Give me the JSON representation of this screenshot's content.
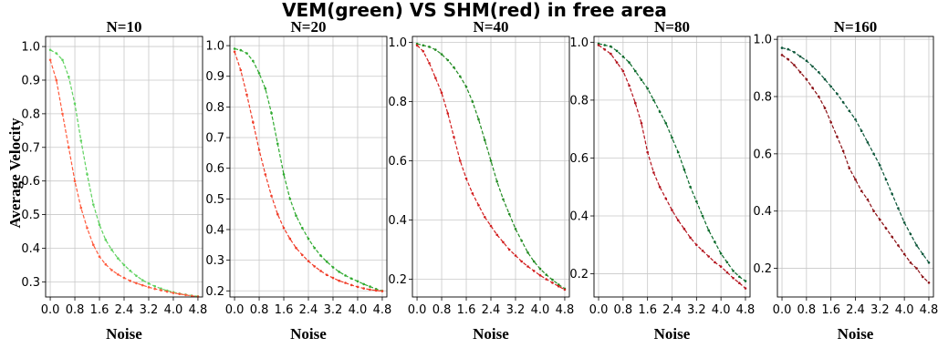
{
  "title": "VEM(green) VS SHM(red) in free area",
  "ylabel": "Average Velocity",
  "xlabel": "Noise",
  "colors": {
    "VEM": [
      "#5fd25f",
      "#2faa2f",
      "#228b22",
      "#0a6a2a",
      "#0a5538"
    ],
    "SHM": [
      "#ff5a3c",
      "#f03c28",
      "#d21e1e",
      "#b4141e",
      "#8a0f14"
    ]
  },
  "chart_data": [
    {
      "type": "line",
      "title": "N=10",
      "xlabel": "Noise",
      "ylabel": "Average Velocity",
      "xlim": [
        -0.15,
        4.95
      ],
      "ylim": [
        0.255,
        1.03
      ],
      "x_ticks": [
        "0.0",
        "0.8",
        "1.6",
        "2.4",
        "3.2",
        "4.0",
        "4.8"
      ],
      "y_ticks": [
        "0.3",
        "0.4",
        "0.5",
        "0.6",
        "0.7",
        "0.8",
        "0.9",
        "1.0"
      ],
      "grid": true,
      "x": [
        0.0,
        0.2,
        0.4,
        0.6,
        0.8,
        1.0,
        1.2,
        1.4,
        1.6,
        1.8,
        2.0,
        2.2,
        2.4,
        2.6,
        2.8,
        3.0,
        3.2,
        3.4,
        3.6,
        3.8,
        4.0,
        4.2,
        4.4,
        4.6,
        4.8
      ],
      "series": [
        {
          "values": [
            0.99,
            0.98,
            0.96,
            0.91,
            0.83,
            0.72,
            0.62,
            0.53,
            0.47,
            0.425,
            0.395,
            0.37,
            0.35,
            0.333,
            0.318,
            0.305,
            0.295,
            0.287,
            0.28,
            0.274,
            0.269,
            0.265,
            0.262,
            0.259,
            0.257
          ]
        },
        {
          "values": [
            0.96,
            0.9,
            0.8,
            0.7,
            0.6,
            0.52,
            0.46,
            0.41,
            0.375,
            0.352,
            0.335,
            0.322,
            0.312,
            0.303,
            0.296,
            0.29,
            0.284,
            0.279,
            0.275,
            0.271,
            0.267,
            0.264,
            0.261,
            0.258,
            0.256
          ]
        }
      ]
    },
    {
      "type": "line",
      "title": "N=20",
      "xlabel": "Noise",
      "xlim": [
        -0.15,
        4.95
      ],
      "ylim": [
        0.18,
        1.03
      ],
      "x_ticks": [
        "0.0",
        "0.8",
        "1.6",
        "2.4",
        "3.2",
        "4.0",
        "4.8"
      ],
      "y_ticks": [
        "0.2",
        "0.3",
        "0.4",
        "0.5",
        "0.6",
        "0.7",
        "0.8",
        "0.9",
        "1.0"
      ],
      "grid": true,
      "x": [
        0.0,
        0.2,
        0.4,
        0.6,
        0.8,
        1.0,
        1.2,
        1.4,
        1.6,
        1.8,
        2.0,
        2.2,
        2.4,
        2.6,
        2.8,
        3.0,
        3.2,
        3.4,
        3.6,
        3.8,
        4.0,
        4.2,
        4.4,
        4.6,
        4.8
      ],
      "series": [
        {
          "values": [
            0.99,
            0.985,
            0.975,
            0.95,
            0.91,
            0.86,
            0.78,
            0.68,
            0.58,
            0.5,
            0.445,
            0.405,
            0.37,
            0.34,
            0.315,
            0.295,
            0.277,
            0.262,
            0.25,
            0.24,
            0.231,
            0.222,
            0.214,
            0.206,
            0.2
          ]
        },
        {
          "values": [
            0.98,
            0.92,
            0.84,
            0.75,
            0.66,
            0.58,
            0.51,
            0.45,
            0.405,
            0.37,
            0.34,
            0.317,
            0.297,
            0.28,
            0.265,
            0.252,
            0.242,
            0.233,
            0.226,
            0.219,
            0.213,
            0.208,
            0.204,
            0.201,
            0.199
          ]
        }
      ]
    },
    {
      "type": "line",
      "title": "N=40",
      "xlabel": "Noise",
      "xlim": [
        -0.15,
        4.95
      ],
      "ylim": [
        0.14,
        1.02
      ],
      "x_ticks": [
        "0.0",
        "0.8",
        "1.6",
        "2.4",
        "3.2",
        "4.0",
        "4.8"
      ],
      "y_ticks": [
        "0.2",
        "0.4",
        "0.6",
        "0.8",
        "1.0"
      ],
      "grid": true,
      "x": [
        0.0,
        0.2,
        0.4,
        0.6,
        0.8,
        1.0,
        1.2,
        1.4,
        1.6,
        1.8,
        2.0,
        2.2,
        2.4,
        2.6,
        2.8,
        3.0,
        3.2,
        3.4,
        3.6,
        3.8,
        4.0,
        4.2,
        4.4,
        4.6,
        4.8
      ],
      "series": [
        {
          "values": [
            0.995,
            0.99,
            0.985,
            0.975,
            0.96,
            0.94,
            0.915,
            0.885,
            0.85,
            0.8,
            0.74,
            0.67,
            0.6,
            0.53,
            0.47,
            0.42,
            0.37,
            0.33,
            0.29,
            0.26,
            0.235,
            0.215,
            0.198,
            0.182,
            0.168
          ]
        },
        {
          "values": [
            0.99,
            0.97,
            0.93,
            0.88,
            0.83,
            0.76,
            0.68,
            0.6,
            0.54,
            0.49,
            0.45,
            0.41,
            0.38,
            0.35,
            0.325,
            0.3,
            0.28,
            0.26,
            0.243,
            0.228,
            0.213,
            0.2,
            0.188,
            0.176,
            0.165
          ]
        }
      ]
    },
    {
      "type": "line",
      "title": "N=80",
      "xlabel": "Noise",
      "xlim": [
        -0.15,
        4.95
      ],
      "ylim": [
        0.12,
        1.02
      ],
      "x_ticks": [
        "0.0",
        "0.8",
        "1.6",
        "2.4",
        "3.2",
        "4.0",
        "4.8"
      ],
      "y_ticks": [
        "0.2",
        "0.4",
        "0.6",
        "0.8",
        "1.0"
      ],
      "grid": true,
      "x": [
        0.0,
        0.2,
        0.4,
        0.6,
        0.8,
        1.0,
        1.2,
        1.4,
        1.6,
        1.8,
        2.0,
        2.2,
        2.4,
        2.6,
        2.8,
        3.0,
        3.2,
        3.4,
        3.6,
        3.8,
        4.0,
        4.2,
        4.4,
        4.6,
        4.8
      ],
      "series": [
        {
          "values": [
            0.995,
            0.99,
            0.985,
            0.97,
            0.95,
            0.93,
            0.9,
            0.87,
            0.84,
            0.8,
            0.76,
            0.72,
            0.67,
            0.62,
            0.56,
            0.5,
            0.45,
            0.4,
            0.35,
            0.31,
            0.27,
            0.24,
            0.21,
            0.19,
            0.175
          ]
        },
        {
          "values": [
            0.99,
            0.975,
            0.96,
            0.93,
            0.9,
            0.85,
            0.79,
            0.72,
            0.62,
            0.55,
            0.5,
            0.46,
            0.42,
            0.385,
            0.355,
            0.325,
            0.3,
            0.28,
            0.26,
            0.24,
            0.225,
            0.205,
            0.185,
            0.168,
            0.15
          ]
        }
      ]
    },
    {
      "type": "line",
      "title": "N=160",
      "xlabel": "Noise",
      "xlim": [
        -0.15,
        4.95
      ],
      "ylim": [
        0.1,
        1.01
      ],
      "x_ticks": [
        "0.0",
        "0.8",
        "1.6",
        "2.4",
        "3.2",
        "4.0",
        "4.8"
      ],
      "y_ticks": [
        "0.2",
        "0.4",
        "0.6",
        "0.8",
        "1.0"
      ],
      "grid": true,
      "x": [
        0.0,
        0.2,
        0.4,
        0.6,
        0.8,
        1.0,
        1.2,
        1.4,
        1.6,
        1.8,
        2.0,
        2.2,
        2.4,
        2.6,
        2.8,
        3.0,
        3.2,
        3.4,
        3.6,
        3.8,
        4.0,
        4.2,
        4.4,
        4.6,
        4.8
      ],
      "series": [
        {
          "values": [
            0.97,
            0.965,
            0.955,
            0.94,
            0.925,
            0.905,
            0.885,
            0.86,
            0.835,
            0.81,
            0.78,
            0.75,
            0.72,
            0.68,
            0.64,
            0.6,
            0.56,
            0.51,
            0.46,
            0.41,
            0.36,
            0.32,
            0.28,
            0.25,
            0.22
          ]
        },
        {
          "values": [
            0.945,
            0.93,
            0.91,
            0.885,
            0.86,
            0.83,
            0.8,
            0.76,
            0.71,
            0.66,
            0.61,
            0.55,
            0.51,
            0.47,
            0.44,
            0.4,
            0.37,
            0.34,
            0.31,
            0.28,
            0.25,
            0.22,
            0.2,
            0.17,
            0.15
          ]
        }
      ]
    }
  ]
}
